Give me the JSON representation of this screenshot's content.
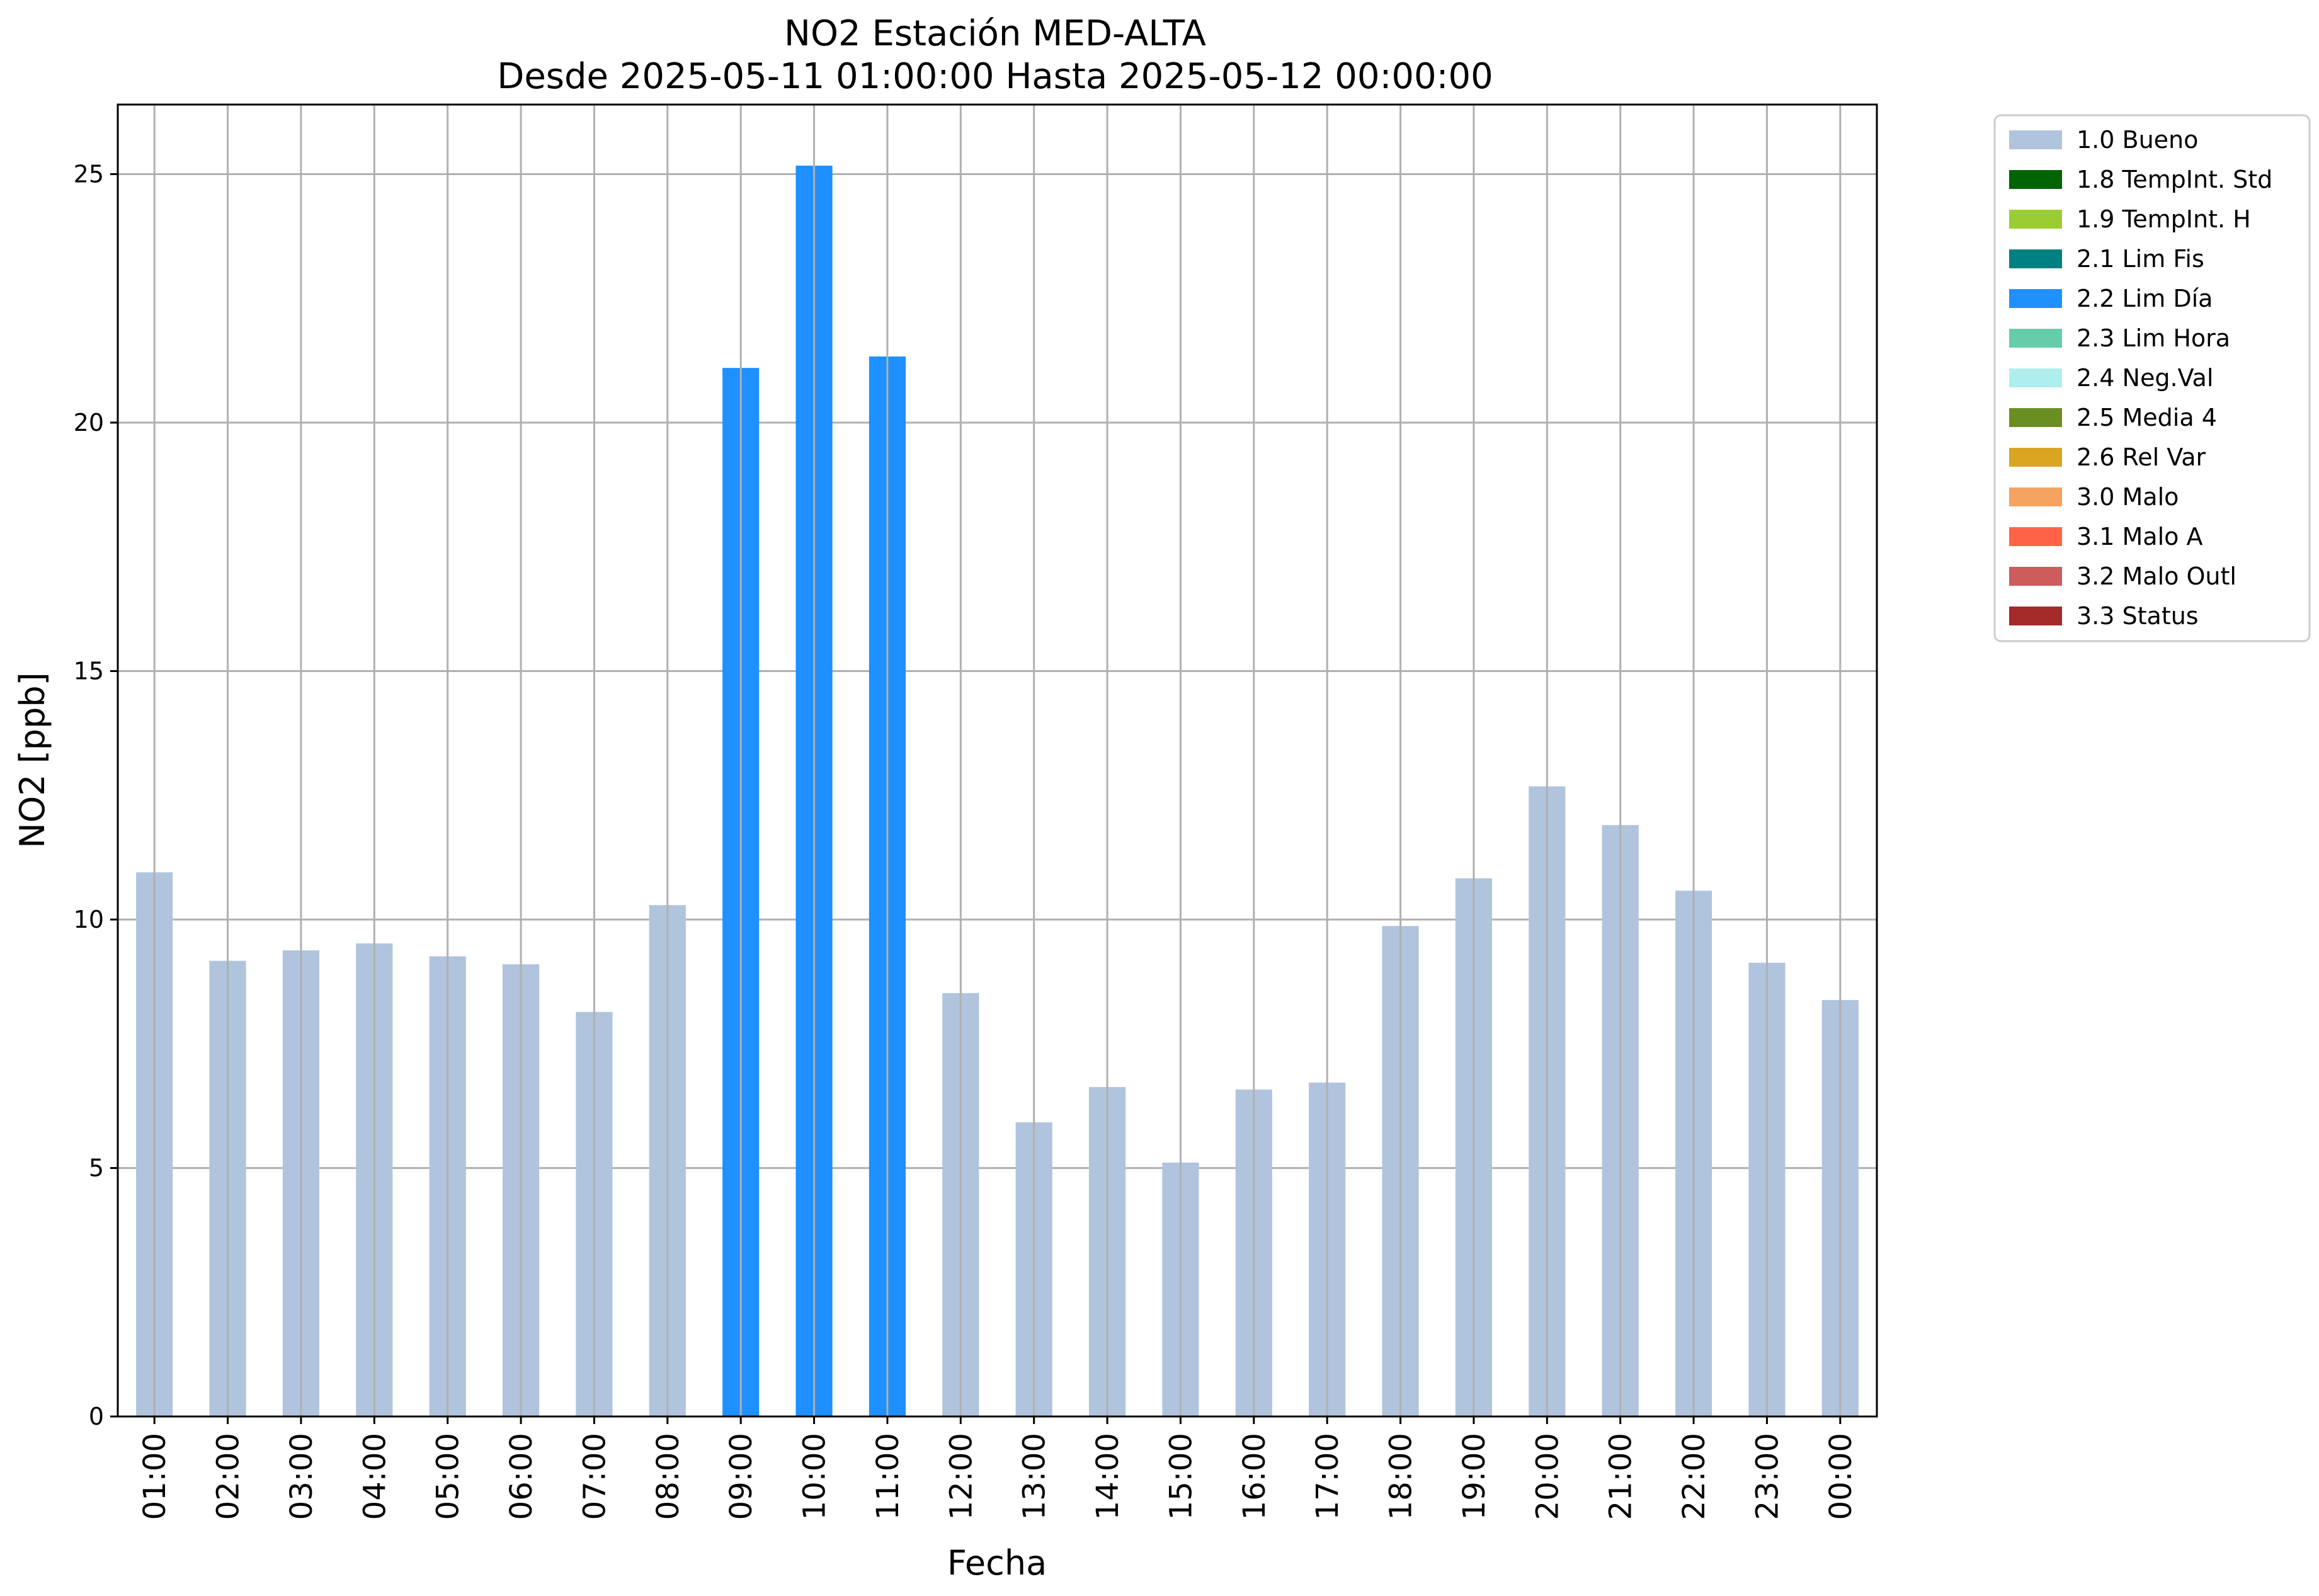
{
  "chart_data": {
    "type": "bar",
    "title": "NO2 Estación MED-ALTA",
    "subtitle": "Desde 2025-05-11 01:00:00 Hasta 2025-05-12 00:00:00",
    "xlabel": "Fecha",
    "ylabel": "NO2 [ppb]",
    "ylim": [
      0,
      26.4
    ],
    "yticks": [
      0,
      5,
      10,
      15,
      20,
      25
    ],
    "grid": true,
    "legend_position": "outside-top-right",
    "categories": [
      "01:00",
      "02:00",
      "03:00",
      "04:00",
      "05:00",
      "06:00",
      "07:00",
      "08:00",
      "09:00",
      "10:00",
      "11:00",
      "12:00",
      "13:00",
      "14:00",
      "15:00",
      "16:00",
      "17:00",
      "18:00",
      "19:00",
      "20:00",
      "21:00",
      "22:00",
      "23:00",
      "00:00"
    ],
    "values": [
      10.95,
      9.17,
      9.38,
      9.52,
      9.26,
      9.1,
      8.14,
      10.29,
      21.1,
      25.17,
      21.33,
      8.52,
      5.92,
      6.63,
      5.11,
      6.58,
      6.72,
      9.87,
      10.83,
      12.68,
      11.9,
      10.58,
      9.13,
      8.38
    ],
    "flags": [
      "1.0 Bueno",
      "1.0 Bueno",
      "1.0 Bueno",
      "1.0 Bueno",
      "1.0 Bueno",
      "1.0 Bueno",
      "1.0 Bueno",
      "1.0 Bueno",
      "2.2 Lim Día",
      "2.2 Lim Día",
      "2.2 Lim Día",
      "1.0 Bueno",
      "1.0 Bueno",
      "1.0 Bueno",
      "1.0 Bueno",
      "1.0 Bueno",
      "1.0 Bueno",
      "1.0 Bueno",
      "1.0 Bueno",
      "1.0 Bueno",
      "1.0 Bueno",
      "1.0 Bueno",
      "1.0 Bueno",
      "1.0 Bueno"
    ],
    "legend": [
      {
        "label": "1.0 Bueno",
        "color": "#b0c4de"
      },
      {
        "label": "1.8 TempInt. Std",
        "color": "#006400"
      },
      {
        "label": "1.9 TempInt. H",
        "color": "#9acd32"
      },
      {
        "label": "2.1 Lim Fis",
        "color": "#008080"
      },
      {
        "label": "2.2 Lim Día",
        "color": "#1e90ff"
      },
      {
        "label": "2.3 Lim Hora",
        "color": "#66cdaa"
      },
      {
        "label": "2.4 Neg.Val",
        "color": "#afeeee"
      },
      {
        "label": "2.5 Media 4",
        "color": "#6b8e23"
      },
      {
        "label": "2.6 Rel Var",
        "color": "#daa520"
      },
      {
        "label": "3.0 Malo",
        "color": "#f4a460"
      },
      {
        "label": "3.1 Malo A",
        "color": "#ff6347"
      },
      {
        "label": "3.2 Malo Outl",
        "color": "#cd5c5c"
      },
      {
        "label": "3.3 Status",
        "color": "#a52a2a"
      }
    ]
  }
}
